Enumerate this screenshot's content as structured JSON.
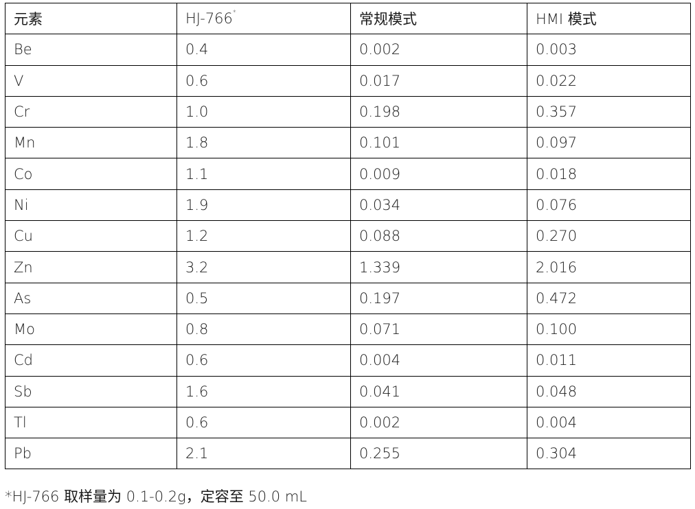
{
  "table": {
    "headers": [
      "元素",
      "HJ-766",
      "常规模式",
      "HMI 模式"
    ],
    "header_marker": "*",
    "rows": [
      [
        "Be",
        "0.4",
        "0.002",
        "0.003"
      ],
      [
        "V",
        "0.6",
        "0.017",
        "0.022"
      ],
      [
        "Cr",
        "1.0",
        "0.198",
        "0.357"
      ],
      [
        "Mn",
        "1.8",
        "0.101",
        "0.097"
      ],
      [
        "Co",
        "1.1",
        "0.009",
        "0.018"
      ],
      [
        "Ni",
        "1.9",
        "0.034",
        "0.076"
      ],
      [
        "Cu",
        "1.2",
        "0.088",
        "0.270"
      ],
      [
        "Zn",
        "3.2",
        "1.339",
        "2.016"
      ],
      [
        "As",
        "0.5",
        "0.197",
        "0.472"
      ],
      [
        "Mo",
        "0.8",
        "0.071",
        "0.100"
      ],
      [
        "Cd",
        "0.6",
        "0.004",
        "0.011"
      ],
      [
        "Sb",
        "1.6",
        "0.041",
        "0.048"
      ],
      [
        "Tl",
        "0.6",
        "0.002",
        "0.004"
      ],
      [
        "Pb",
        "2.1",
        "0.255",
        "0.304"
      ]
    ]
  },
  "footnote": "*HJ-766 取样量为 0.1-0.2g，定容至 50.0 mL"
}
